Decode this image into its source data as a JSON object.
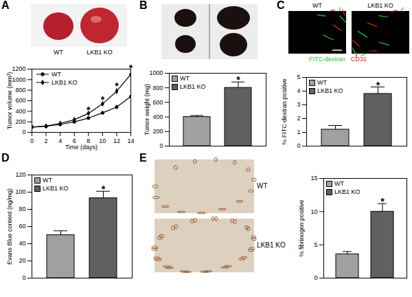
{
  "panels": [
    "A",
    "B",
    "C",
    "D",
    "E"
  ],
  "images": [
    {
      "panel": "A",
      "labels": [
        "WT",
        "LKB1 KO"
      ]
    },
    {
      "panel": "B"
    },
    {
      "panel": "C",
      "labels": [
        "WT",
        "LKB1 KO"
      ],
      "stains": [
        {
          "name": "FITC-dextran",
          "color": "#22cc22"
        },
        {
          "name": "CD31",
          "color": "#e02020"
        }
      ]
    },
    {
      "panel": "E",
      "labels": [
        "WT",
        "LKB1 KO"
      ]
    }
  ],
  "chart_data": [
    {
      "panel": "A",
      "type": "line",
      "xlabel": "Time (days)",
      "ylabel": "Tumor volume (mm³)",
      "x": [
        0,
        2,
        4,
        6,
        8,
        10,
        12,
        14
      ],
      "series": [
        {
          "name": "WT",
          "color": "#000000",
          "marker": "circle",
          "values": [
            100,
            115,
            150,
            200,
            270,
            370,
            480,
            680
          ],
          "errors": [
            5,
            8,
            10,
            15,
            20,
            30,
            40,
            60
          ]
        },
        {
          "name": "LKB1 KO",
          "color": "#000000",
          "marker": "diamond",
          "values": [
            100,
            120,
            170,
            240,
            360,
            540,
            780,
            1100
          ],
          "errors": [
            5,
            10,
            15,
            20,
            30,
            45,
            60,
            80
          ],
          "significance": [
            null,
            null,
            null,
            null,
            "*",
            "*",
            "*",
            "*"
          ]
        }
      ],
      "xlim": [
        0,
        14
      ],
      "xticks": [
        0,
        2,
        4,
        6,
        8,
        10,
        12,
        14
      ],
      "ylim": [
        0,
        1200
      ],
      "yticks": [
        0,
        200,
        400,
        600,
        800,
        1000,
        1200
      ],
      "legend": "top-left"
    },
    {
      "panel": "B",
      "type": "bar",
      "ylabel": "Tumor weight (mg)",
      "categories": [
        "WT",
        "LKB1 KO"
      ],
      "values": [
        400,
        800
      ],
      "errors": [
        20,
        80
      ],
      "significance": [
        null,
        "*"
      ],
      "colors": [
        "#a0a0a0",
        "#606060"
      ],
      "ylim": [
        0,
        1000
      ],
      "yticks": [
        0,
        200,
        400,
        600,
        800,
        1000
      ],
      "legend": "top-left",
      "tick_labels": "y"
    },
    {
      "panel": "C",
      "type": "bar",
      "ylabel": "% FITC-dextran positive",
      "categories": [
        "WT",
        "LKB1 KO"
      ],
      "values": [
        1.2,
        3.8
      ],
      "errors": [
        0.3,
        0.5
      ],
      "significance": [
        null,
        "*"
      ],
      "colors": [
        "#a0a0a0",
        "#606060"
      ],
      "ylim": [
        0,
        5
      ],
      "yticks": [
        0,
        1,
        2,
        3,
        4,
        5
      ],
      "legend": "top-left",
      "tick_labels": "y"
    },
    {
      "panel": "D",
      "type": "bar",
      "ylabel": "Evans Blue content (ng/mg)",
      "categories": [
        "WT",
        "LKB1 KO"
      ],
      "values": [
        50,
        93
      ],
      "errors": [
        5,
        8
      ],
      "significance": [
        null,
        "*"
      ],
      "colors": [
        "#a0a0a0",
        "#606060"
      ],
      "ylim": [
        0,
        120
      ],
      "yticks": [
        0,
        20,
        40,
        60,
        80,
        100,
        120
      ],
      "legend": "top-left",
      "tick_labels": "y"
    },
    {
      "panel": "E",
      "type": "bar",
      "ylabel": "% fibrinogen positive",
      "categories": [
        "WT",
        "LKB1 KO"
      ],
      "values": [
        3.6,
        10
      ],
      "errors": [
        0.4,
        1.2
      ],
      "significance": [
        null,
        "*"
      ],
      "colors": [
        "#a0a0a0",
        "#606060"
      ],
      "ylim": [
        0,
        15
      ],
      "yticks": [
        0,
        5,
        10,
        15
      ],
      "legend": "top-left",
      "tick_labels": "y"
    }
  ]
}
